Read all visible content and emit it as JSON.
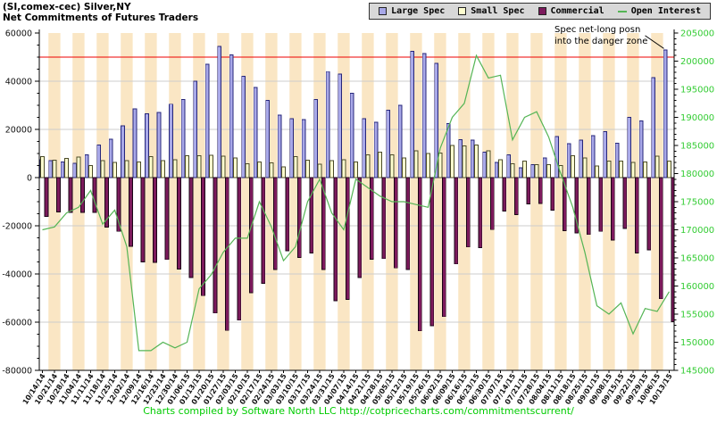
{
  "header": {
    "title_line1": "(SI,comex-cec) Silver,NY",
    "title_line2": "Net Commitments of Futures Traders"
  },
  "legend": {
    "items": [
      {
        "label": "Large Spec",
        "color": "#a8a8e8",
        "swatch": "square"
      },
      {
        "label": "Small Spec",
        "color": "#ffffcf",
        "swatch": "square"
      },
      {
        "label": "Commercial",
        "color": "#7c1a5c",
        "swatch": "square"
      },
      {
        "label": "Open Interest",
        "color": "#55b555",
        "swatch": "line"
      }
    ]
  },
  "annotation": {
    "line1": "Spec net-long posn",
    "line2": "into the danger zone"
  },
  "footer": {
    "text": "Charts compiled by Software North LLC  http://cotpricecharts.com/commitmentscurrent/"
  },
  "chart_data": {
    "type": "bar",
    "subtype": "grouped-bars-with-line-overlay",
    "title": "Net Commitments of Futures Traders",
    "xlabel": "",
    "ylabel": "",
    "legend_position": "top-right",
    "grid": true,
    "categories": [
      "10/14/14",
      "10/21/14",
      "10/28/14",
      "11/04/14",
      "11/11/14",
      "11/18/14",
      "11/25/14",
      "12/02/14",
      "12/09/14",
      "12/16/14",
      "12/23/14",
      "12/30/14",
      "01/06/15",
      "01/13/15",
      "01/20/15",
      "01/27/15",
      "02/03/15",
      "02/10/15",
      "02/17/15",
      "02/24/15",
      "03/03/15",
      "03/10/15",
      "03/17/15",
      "03/24/15",
      "03/31/15",
      "04/07/15",
      "04/14/15",
      "04/21/15",
      "04/28/15",
      "05/05/15",
      "05/12/15",
      "05/19/15",
      "05/26/15",
      "06/02/15",
      "06/09/15",
      "06/16/15",
      "06/23/15",
      "06/30/15",
      "07/07/15",
      "07/14/15",
      "07/21/15",
      "07/28/15",
      "08/04/15",
      "08/11/15",
      "08/18/15",
      "08/25/15",
      "09/01/15",
      "09/08/15",
      "09/15/15",
      "09/22/15",
      "09/29/15",
      "10/06/15",
      "10/13/15"
    ],
    "series": [
      {
        "name": "Large Spec",
        "type": "bar",
        "axis": "left",
        "color": "#a8a8e8",
        "border": "#26267a",
        "values": [
          7500,
          7000,
          6500,
          6000,
          9500,
          13500,
          16000,
          21500,
          28500,
          26500,
          27000,
          30500,
          32500,
          40000,
          47000,
          54500,
          51000,
          42000,
          37500,
          32000,
          26000,
          24500,
          24000,
          32500,
          44000,
          43000,
          35000,
          24500,
          23000,
          28000,
          30000,
          52500,
          51500,
          47500,
          22500,
          15700,
          15500,
          10500,
          6300,
          9500,
          4100,
          5400,
          8200,
          17000,
          14000,
          15500,
          17500,
          19000,
          14200,
          25000,
          23500,
          41500,
          53000
        ]
      },
      {
        "name": "Small Spec",
        "type": "bar",
        "axis": "left",
        "color": "#ffffcf",
        "border": "#4a4a28",
        "values": [
          8700,
          7200,
          8000,
          8500,
          5000,
          7000,
          6300,
          7000,
          6500,
          8700,
          7000,
          7500,
          9000,
          9000,
          9200,
          8900,
          8200,
          5800,
          6400,
          6100,
          4400,
          8700,
          7300,
          5600,
          7100,
          7500,
          6500,
          9400,
          10600,
          9500,
          8100,
          11100,
          10000,
          10200,
          13300,
          13100,
          13600,
          11100,
          7500,
          5800,
          6800,
          5300,
          5300,
          5000,
          9000,
          8100,
          4800,
          6900,
          6900,
          6300,
          6500,
          8800,
          6800
        ]
      },
      {
        "name": "Commercial",
        "type": "bar",
        "axis": "left",
        "color": "#7c1a5c",
        "border": "#1a0516",
        "values": [
          -16200,
          -14200,
          -14500,
          -14500,
          -14500,
          -20500,
          -22300,
          -28500,
          -35000,
          -35200,
          -34000,
          -38000,
          -41500,
          -49000,
          -56200,
          -63400,
          -59200,
          -47800,
          -43900,
          -38100,
          -30400,
          -33200,
          -31300,
          -38100,
          -51100,
          -50500,
          -41500,
          -33900,
          -33600,
          -37500,
          -38100,
          -63600,
          -61500,
          -57700,
          -35800,
          -28800,
          -29100,
          -21600,
          -13800,
          -15300,
          -10900,
          -10700,
          -13500,
          -22000,
          -23000,
          -23600,
          -22300,
          -25900,
          -21100,
          -31300,
          -30000,
          -50300,
          -59800
        ]
      },
      {
        "name": "Open Interest",
        "type": "line",
        "axis": "right",
        "color": "#55b555",
        "values": [
          170000,
          170500,
          173000,
          174000,
          177000,
          171000,
          173500,
          167000,
          148500,
          148500,
          150000,
          149000,
          150000,
          159500,
          162000,
          166000,
          168500,
          168500,
          175000,
          170500,
          164500,
          167000,
          175000,
          179000,
          173000,
          170000,
          179000,
          177500,
          176000,
          175000,
          175000,
          174500,
          174000,
          184500,
          190000,
          192500,
          201000,
          197000,
          197500,
          186000,
          190000,
          191000,
          186500,
          180000,
          174000,
          166000,
          156500,
          155000,
          157000,
          151500,
          156000,
          155500,
          159000
        ]
      }
    ],
    "left_axis": {
      "min": -80000,
      "max": 60000,
      "major_tick": 20000,
      "minor_tick": 5000,
      "ticks": [
        "60000",
        "40000",
        "20000",
        "0",
        "-20000",
        "-40000",
        "-60000",
        "-80000"
      ],
      "label_color": "#111111"
    },
    "right_axis": {
      "min": 145000,
      "max": 205000,
      "major_tick": 5000,
      "minor_tick": 1000,
      "ticks": [
        "205000",
        "200000",
        "195000",
        "190000",
        "185000",
        "180000",
        "175000",
        "170000",
        "165000",
        "160000",
        "155000",
        "150000",
        "145000"
      ],
      "label_color": "#33cc33"
    },
    "threshold_line": {
      "value": 50000,
      "color": "#ee0000"
    },
    "plot": {
      "stripe_colors": [
        "#ffffff",
        "#fae6c4"
      ],
      "grid_color": "#cccccc"
    }
  }
}
